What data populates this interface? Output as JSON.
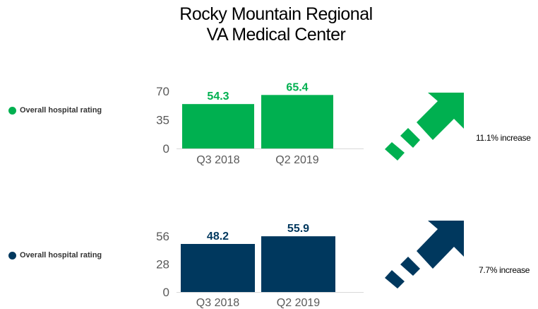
{
  "title_lines": [
    "Rocky Mountain Regional",
    "VA Medical Center"
  ],
  "colors": {
    "green": "#00b050",
    "navy": "#00385e",
    "axis_text": "#595959"
  },
  "icons": {
    "arrow": "diagonal-up-right-dashed-arrow-icon"
  },
  "chart_data": [
    {
      "type": "bar",
      "legend": "Overall hospital rating",
      "categories": [
        "Q3 2018",
        "Q2 2019"
      ],
      "values": [
        54.3,
        65.4
      ],
      "yticks": [
        0,
        35,
        70
      ],
      "ylim": [
        0,
        70
      ],
      "color": "#00b050",
      "annotation": "11.1% increase"
    },
    {
      "type": "bar",
      "legend": "Overall hospital rating",
      "categories": [
        "Q3 2018",
        "Q2 2019"
      ],
      "values": [
        48.2,
        55.9
      ],
      "yticks": [
        0,
        28,
        56
      ],
      "ylim": [
        0,
        56
      ],
      "color": "#00385e",
      "annotation": "7.7% increase"
    }
  ]
}
